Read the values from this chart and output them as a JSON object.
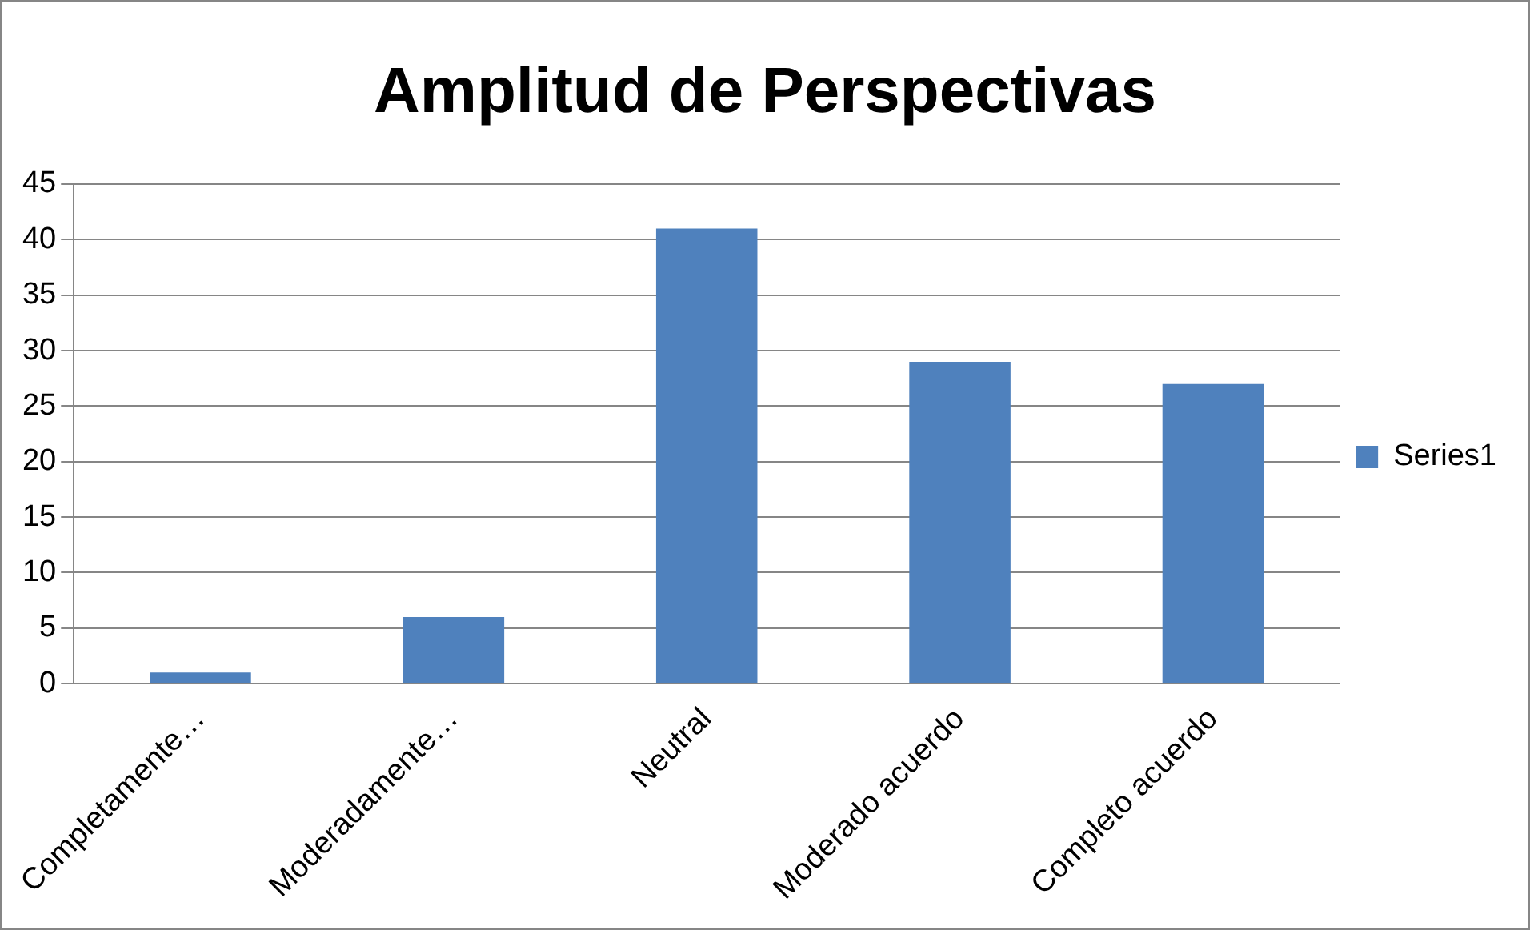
{
  "chart_data": {
    "type": "bar",
    "title": "Amplitud de Perspectivas",
    "categories": [
      "Completamente…",
      "Moderadamente…",
      "Neutral",
      "Moderado acuerdo",
      "Completo acuerdo"
    ],
    "series": [
      {
        "name": "Series1",
        "color": "#4f81bd",
        "values": [
          1,
          6,
          41,
          29,
          27
        ]
      }
    ],
    "ylim": [
      0,
      45
    ],
    "yticks": [
      0,
      5,
      10,
      15,
      20,
      25,
      30,
      35,
      40,
      45
    ],
    "grid": "y",
    "legend": "right"
  }
}
